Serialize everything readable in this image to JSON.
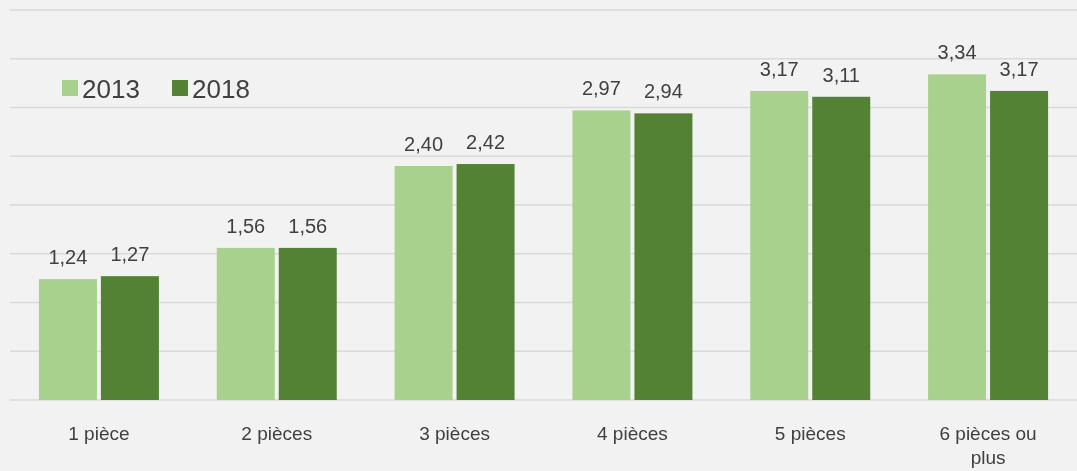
{
  "chart_data": {
    "type": "bar",
    "categories": [
      "1 pièce",
      "2 pièces",
      "3 pièces",
      "4 pièces",
      "5 pièces",
      "6 pièces ou plus"
    ],
    "series": [
      {
        "name": "2013",
        "color": "#a9d18e",
        "values": [
          1.24,
          1.56,
          2.4,
          2.97,
          3.17,
          3.34
        ],
        "value_labels": [
          "1,24",
          "1,56",
          "2,40",
          "2,97",
          "3,17",
          "3,34"
        ]
      },
      {
        "name": "2018",
        "color": "#548235",
        "values": [
          1.27,
          1.56,
          2.42,
          2.94,
          3.11,
          3.17
        ],
        "value_labels": [
          "1,27",
          "1,56",
          "2,42",
          "2,94",
          "3,11",
          "3,17"
        ]
      }
    ],
    "ylim": [
      0,
      4
    ],
    "yticks": [
      {
        "value": 0,
        "label": null
      },
      {
        "value": 0.5,
        "label": null
      },
      {
        "value": 1,
        "label": null
      },
      {
        "value": 1.5,
        "label": null
      },
      {
        "value": 2,
        "label": null
      },
      {
        "value": 2.5,
        "label": null
      },
      {
        "value": 3,
        "label": null
      },
      {
        "value": 3.5,
        "label": null
      },
      {
        "value": 4,
        "label": null
      }
    ],
    "grid": "y",
    "tick_labels": "x",
    "legend": "top left"
  }
}
